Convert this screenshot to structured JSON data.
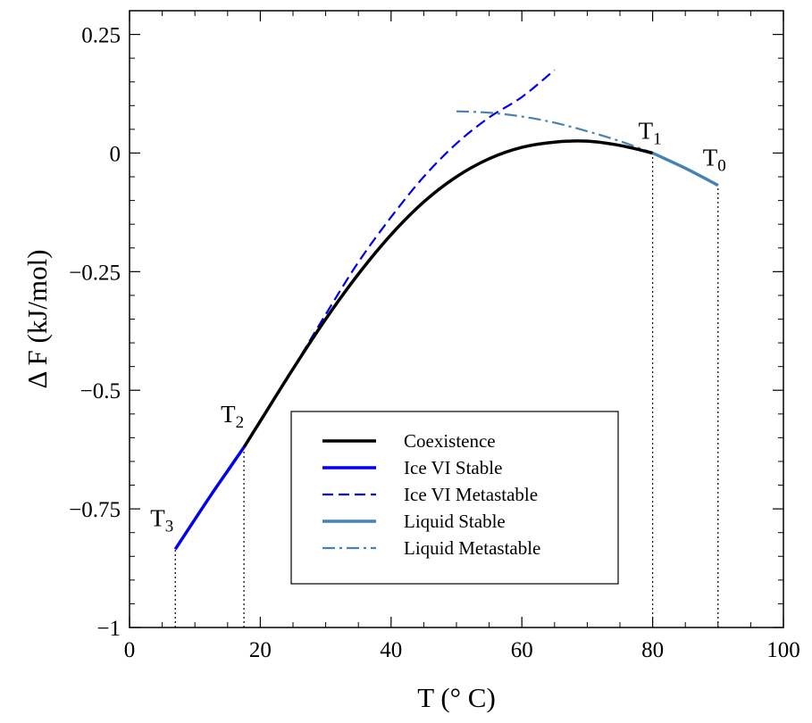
{
  "chart_data": {
    "type": "line",
    "xlabel": "T (° C)",
    "ylabel": "Δ F (kJ/mol)",
    "xlim": [
      0,
      100
    ],
    "ylim": [
      -1,
      0.3
    ],
    "x_ticks": [
      0,
      20,
      40,
      60,
      80,
      100
    ],
    "x_tick_labels": [
      "0",
      "20",
      "40",
      "60",
      "80",
      "100"
    ],
    "y_ticks": [
      -1,
      -0.75,
      -0.5,
      -0.25,
      0,
      0.25
    ],
    "y_tick_labels": [
      "−1",
      "−0.75",
      "−0.5",
      "−0.25",
      "0",
      "0.25"
    ],
    "grid": false,
    "legend_position": "lower-right",
    "series": [
      {
        "name": "Coexistence",
        "color": "#000000",
        "style": "solid",
        "points": [
          [
            17.5,
            -0.62
          ],
          [
            20,
            -0.565
          ],
          [
            25,
            -0.455
          ],
          [
            30,
            -0.35
          ],
          [
            35,
            -0.255
          ],
          [
            40,
            -0.172
          ],
          [
            45,
            -0.103
          ],
          [
            50,
            -0.05
          ],
          [
            55,
            -0.012
          ],
          [
            60,
            0.012
          ],
          [
            65,
            0.023
          ],
          [
            70,
            0.025
          ],
          [
            75,
            0.016
          ],
          [
            80,
            0.0
          ]
        ]
      },
      {
        "name": "Ice VI Stable",
        "color": "#0000ee",
        "style": "solid",
        "points": [
          [
            7,
            -0.835
          ],
          [
            10,
            -0.772
          ],
          [
            12.5,
            -0.72
          ],
          [
            15,
            -0.67
          ],
          [
            17.5,
            -0.62
          ]
        ]
      },
      {
        "name": "Ice VI Metastable",
        "color": "#0000ee",
        "style": "dashed",
        "points": [
          [
            25,
            -0.455
          ],
          [
            30,
            -0.34
          ],
          [
            35,
            -0.23
          ],
          [
            40,
            -0.135
          ],
          [
            45,
            -0.05
          ],
          [
            50,
            0.02
          ],
          [
            55,
            0.075
          ],
          [
            60,
            0.118
          ],
          [
            65,
            0.175
          ]
        ]
      },
      {
        "name": "Liquid Stable",
        "color": "#4682b4",
        "style": "solid",
        "points": [
          [
            80,
            0.0
          ],
          [
            85,
            -0.032
          ],
          [
            90,
            -0.068
          ]
        ]
      },
      {
        "name": "Liquid Metastable",
        "color": "#4682b4",
        "style": "dashdot",
        "points": [
          [
            50,
            0.088
          ],
          [
            55,
            0.085
          ],
          [
            60,
            0.077
          ],
          [
            65,
            0.064
          ],
          [
            70,
            0.046
          ],
          [
            75,
            0.025
          ],
          [
            80,
            0.0
          ]
        ]
      }
    ],
    "vlines": [
      {
        "x": 7,
        "y_top": -0.835
      },
      {
        "x": 17.5,
        "y_top": -0.62
      },
      {
        "x": 80,
        "y_top": 0.0
      },
      {
        "x": 90,
        "y_top": -0.068
      }
    ],
    "annotations": [
      {
        "main": "T",
        "sub": "3",
        "x": 7,
        "y": -0.835
      },
      {
        "main": "T",
        "sub": "2",
        "x": 17.5,
        "y": -0.62
      },
      {
        "main": "T",
        "sub": "1",
        "x": 80,
        "y": 0.0
      },
      {
        "main": "T",
        "sub": "0",
        "x": 90,
        "y": -0.068
      }
    ]
  }
}
